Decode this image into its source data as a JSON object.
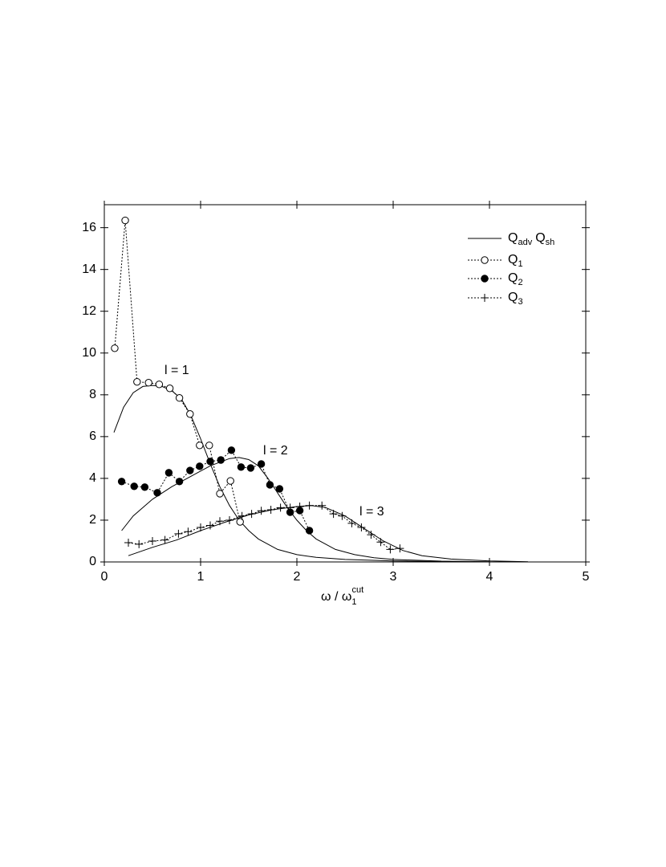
{
  "chart_data": {
    "type": "line",
    "xlabel": {
      "text": "ω / ω",
      "sub": "1",
      "sup": "cut"
    },
    "xlim": [
      0,
      5
    ],
    "xticks": [
      0,
      1,
      2,
      3,
      4,
      5
    ],
    "ylim": [
      0,
      17.1
    ],
    "yticks": [
      0,
      2,
      4,
      6,
      8,
      10,
      12,
      14,
      16
    ],
    "legend": "top-right",
    "model": {
      "name": [
        {
          "text": "Q",
          "sub": "adv"
        },
        {
          "text": "Q",
          "sub": "sh"
        }
      ],
      "color": "#000000",
      "curves": [
        {
          "label": "l = 1",
          "x": [
            0.1,
            0.2,
            0.3,
            0.4,
            0.5,
            0.6,
            0.7,
            0.8,
            0.9,
            1.0,
            1.1,
            1.2,
            1.3,
            1.4,
            1.5,
            1.6,
            1.8,
            2.0,
            2.2,
            2.5,
            3.0,
            3.5
          ],
          "values": [
            6.2,
            7.4,
            8.1,
            8.4,
            8.45,
            8.4,
            8.2,
            7.8,
            7.0,
            5.9,
            4.7,
            3.6,
            2.7,
            2.0,
            1.5,
            1.1,
            0.6,
            0.35,
            0.22,
            0.12,
            0.05,
            0.02
          ]
        },
        {
          "label": "l = 2",
          "x": [
            0.18,
            0.3,
            0.5,
            0.7,
            0.9,
            1.1,
            1.3,
            1.4,
            1.5,
            1.6,
            1.7,
            1.8,
            1.9,
            2.0,
            2.1,
            2.2,
            2.4,
            2.6,
            2.8,
            3.0,
            3.5,
            4.0
          ],
          "values": [
            1.5,
            2.2,
            3.0,
            3.6,
            4.1,
            4.6,
            4.95,
            5.0,
            4.9,
            4.6,
            4.0,
            3.3,
            2.6,
            2.0,
            1.5,
            1.1,
            0.6,
            0.35,
            0.2,
            0.12,
            0.04,
            0.01
          ]
        },
        {
          "label": "l = 3",
          "x": [
            0.25,
            0.5,
            0.75,
            1.0,
            1.25,
            1.5,
            1.75,
            2.0,
            2.15,
            2.3,
            2.5,
            2.7,
            2.9,
            3.1,
            3.3,
            3.6,
            4.0,
            4.4
          ],
          "values": [
            0.3,
            0.7,
            1.05,
            1.5,
            1.9,
            2.25,
            2.5,
            2.65,
            2.7,
            2.6,
            2.2,
            1.6,
            1.0,
            0.55,
            0.3,
            0.14,
            0.05,
            0.01
          ]
        }
      ]
    },
    "series": [
      {
        "name": {
          "text": "Q",
          "sub": "1"
        },
        "marker": "open-circle",
        "color": "#000000",
        "x": [
          0.108,
          0.217,
          0.34,
          0.46,
          0.57,
          0.68,
          0.78,
          0.89,
          0.99,
          1.09,
          1.2,
          1.31,
          1.41
        ],
        "values": [
          10.23,
          16.35,
          8.62,
          8.58,
          8.5,
          8.31,
          7.85,
          7.08,
          5.58,
          5.58,
          3.27,
          3.88,
          1.92
        ]
      },
      {
        "name": {
          "text": "Q",
          "sub": "2"
        },
        "marker": "filled-circle",
        "color": "#000000",
        "x": [
          0.18,
          0.31,
          0.42,
          0.55,
          0.67,
          0.78,
          0.89,
          0.99,
          1.1,
          1.21,
          1.32,
          1.42,
          1.52,
          1.63,
          1.72,
          1.82,
          1.93,
          2.03,
          2.13
        ],
        "values": [
          3.85,
          3.62,
          3.58,
          3.31,
          4.27,
          3.85,
          4.38,
          4.58,
          4.81,
          4.88,
          5.35,
          4.54,
          4.5,
          4.69,
          3.69,
          3.5,
          2.38,
          2.46,
          1.5
        ]
      },
      {
        "name": {
          "text": "Q",
          "sub": "3"
        },
        "marker": "plus",
        "color": "#000000",
        "x": [
          0.25,
          0.36,
          0.5,
          0.63,
          0.77,
          0.87,
          1.0,
          1.1,
          1.2,
          1.3,
          1.43,
          1.53,
          1.63,
          1.73,
          1.83,
          1.93,
          2.03,
          2.13,
          2.26,
          2.38,
          2.47,
          2.57,
          2.67,
          2.77,
          2.87,
          2.97,
          3.07
        ],
        "values": [
          0.92,
          0.85,
          1.0,
          1.05,
          1.35,
          1.45,
          1.65,
          1.75,
          1.95,
          2.0,
          2.2,
          2.3,
          2.45,
          2.5,
          2.6,
          2.6,
          2.65,
          2.7,
          2.7,
          2.3,
          2.2,
          1.85,
          1.65,
          1.3,
          0.95,
          0.6,
          0.65
        ]
      }
    ]
  }
}
